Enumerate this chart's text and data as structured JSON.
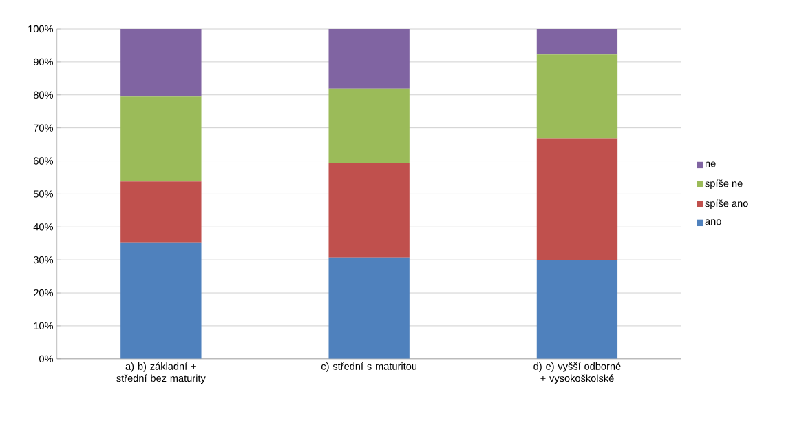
{
  "chart_data": {
    "type": "bar",
    "stacked": true,
    "categories": [
      "a) b) základní + střední bez maturity",
      "c) střední s maturitou",
      "d) e) vyšší odborné + vysokoškolské"
    ],
    "series": [
      {
        "name": "ano",
        "color": "#4f81bd",
        "values": [
          35.3,
          30.7,
          30.0
        ]
      },
      {
        "name": "spíše ano",
        "color": "#c0504d",
        "values": [
          18.5,
          28.7,
          36.7
        ]
      },
      {
        "name": "spíše ne",
        "color": "#9bbb59",
        "values": [
          25.7,
          22.5,
          25.5
        ]
      },
      {
        "name": "ne",
        "color": "#8064a2",
        "values": [
          20.5,
          18.1,
          7.8
        ]
      }
    ],
    "ylim": [
      0,
      100
    ],
    "yticks": [
      {
        "value": 0,
        "label": "0%"
      },
      {
        "value": 10,
        "label": "10%"
      },
      {
        "value": 20,
        "label": "20%"
      },
      {
        "value": 30,
        "label": "30%"
      },
      {
        "value": 40,
        "label": "40%"
      },
      {
        "value": 50,
        "label": "50%"
      },
      {
        "value": 60,
        "label": "60%"
      },
      {
        "value": 70,
        "label": "70%"
      },
      {
        "value": 80,
        "label": "80%"
      },
      {
        "value": 90,
        "label": "90%"
      },
      {
        "value": 100,
        "label": "100%"
      }
    ],
    "grid": "y",
    "legend": "right"
  }
}
